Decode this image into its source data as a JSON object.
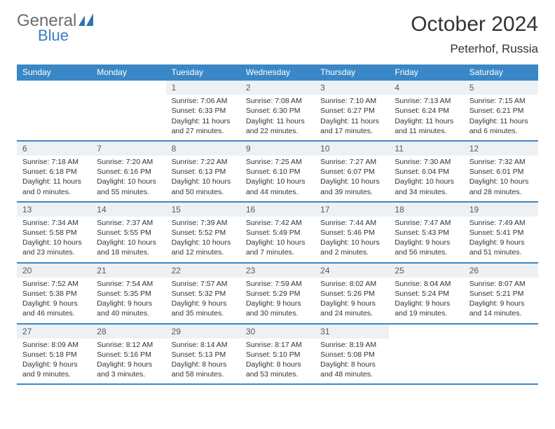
{
  "brand": {
    "name_top": "General",
    "name_bottom": "Blue",
    "logo_color": "#2f73b5"
  },
  "header": {
    "month_title": "October 2024",
    "location": "Peterhof, Russia"
  },
  "colors": {
    "header_bar": "#3a87c7",
    "header_bar_text": "#ffffff",
    "cell_num_bg": "#eef1f3",
    "cell_num_text": "#545a60",
    "week_divider": "#3a87c7",
    "body_text": "#333333"
  },
  "calendar": {
    "day_names": [
      "Sunday",
      "Monday",
      "Tuesday",
      "Wednesday",
      "Thursday",
      "Friday",
      "Saturday"
    ],
    "weeks": [
      [
        null,
        null,
        {
          "n": "1",
          "sr": "7:06 AM",
          "ss": "6:33 PM",
          "dl": "11 hours and 27 minutes."
        },
        {
          "n": "2",
          "sr": "7:08 AM",
          "ss": "6:30 PM",
          "dl": "11 hours and 22 minutes."
        },
        {
          "n": "3",
          "sr": "7:10 AM",
          "ss": "6:27 PM",
          "dl": "11 hours and 17 minutes."
        },
        {
          "n": "4",
          "sr": "7:13 AM",
          "ss": "6:24 PM",
          "dl": "11 hours and 11 minutes."
        },
        {
          "n": "5",
          "sr": "7:15 AM",
          "ss": "6:21 PM",
          "dl": "11 hours and 6 minutes."
        }
      ],
      [
        {
          "n": "6",
          "sr": "7:18 AM",
          "ss": "6:18 PM",
          "dl": "11 hours and 0 minutes."
        },
        {
          "n": "7",
          "sr": "7:20 AM",
          "ss": "6:16 PM",
          "dl": "10 hours and 55 minutes."
        },
        {
          "n": "8",
          "sr": "7:22 AM",
          "ss": "6:13 PM",
          "dl": "10 hours and 50 minutes."
        },
        {
          "n": "9",
          "sr": "7:25 AM",
          "ss": "6:10 PM",
          "dl": "10 hours and 44 minutes."
        },
        {
          "n": "10",
          "sr": "7:27 AM",
          "ss": "6:07 PM",
          "dl": "10 hours and 39 minutes."
        },
        {
          "n": "11",
          "sr": "7:30 AM",
          "ss": "6:04 PM",
          "dl": "10 hours and 34 minutes."
        },
        {
          "n": "12",
          "sr": "7:32 AM",
          "ss": "6:01 PM",
          "dl": "10 hours and 28 minutes."
        }
      ],
      [
        {
          "n": "13",
          "sr": "7:34 AM",
          "ss": "5:58 PM",
          "dl": "10 hours and 23 minutes."
        },
        {
          "n": "14",
          "sr": "7:37 AM",
          "ss": "5:55 PM",
          "dl": "10 hours and 18 minutes."
        },
        {
          "n": "15",
          "sr": "7:39 AM",
          "ss": "5:52 PM",
          "dl": "10 hours and 12 minutes."
        },
        {
          "n": "16",
          "sr": "7:42 AM",
          "ss": "5:49 PM",
          "dl": "10 hours and 7 minutes."
        },
        {
          "n": "17",
          "sr": "7:44 AM",
          "ss": "5:46 PM",
          "dl": "10 hours and 2 minutes."
        },
        {
          "n": "18",
          "sr": "7:47 AM",
          "ss": "5:43 PM",
          "dl": "9 hours and 56 minutes."
        },
        {
          "n": "19",
          "sr": "7:49 AM",
          "ss": "5:41 PM",
          "dl": "9 hours and 51 minutes."
        }
      ],
      [
        {
          "n": "20",
          "sr": "7:52 AM",
          "ss": "5:38 PM",
          "dl": "9 hours and 46 minutes."
        },
        {
          "n": "21",
          "sr": "7:54 AM",
          "ss": "5:35 PM",
          "dl": "9 hours and 40 minutes."
        },
        {
          "n": "22",
          "sr": "7:57 AM",
          "ss": "5:32 PM",
          "dl": "9 hours and 35 minutes."
        },
        {
          "n": "23",
          "sr": "7:59 AM",
          "ss": "5:29 PM",
          "dl": "9 hours and 30 minutes."
        },
        {
          "n": "24",
          "sr": "8:02 AM",
          "ss": "5:26 PM",
          "dl": "9 hours and 24 minutes."
        },
        {
          "n": "25",
          "sr": "8:04 AM",
          "ss": "5:24 PM",
          "dl": "9 hours and 19 minutes."
        },
        {
          "n": "26",
          "sr": "8:07 AM",
          "ss": "5:21 PM",
          "dl": "9 hours and 14 minutes."
        }
      ],
      [
        {
          "n": "27",
          "sr": "8:09 AM",
          "ss": "5:18 PM",
          "dl": "9 hours and 9 minutes."
        },
        {
          "n": "28",
          "sr": "8:12 AM",
          "ss": "5:16 PM",
          "dl": "9 hours and 3 minutes."
        },
        {
          "n": "29",
          "sr": "8:14 AM",
          "ss": "5:13 PM",
          "dl": "8 hours and 58 minutes."
        },
        {
          "n": "30",
          "sr": "8:17 AM",
          "ss": "5:10 PM",
          "dl": "8 hours and 53 minutes."
        },
        {
          "n": "31",
          "sr": "8:19 AM",
          "ss": "5:08 PM",
          "dl": "8 hours and 48 minutes."
        },
        null,
        null
      ]
    ],
    "labels": {
      "sunrise": "Sunrise:",
      "sunset": "Sunset:",
      "daylight": "Daylight:"
    }
  }
}
